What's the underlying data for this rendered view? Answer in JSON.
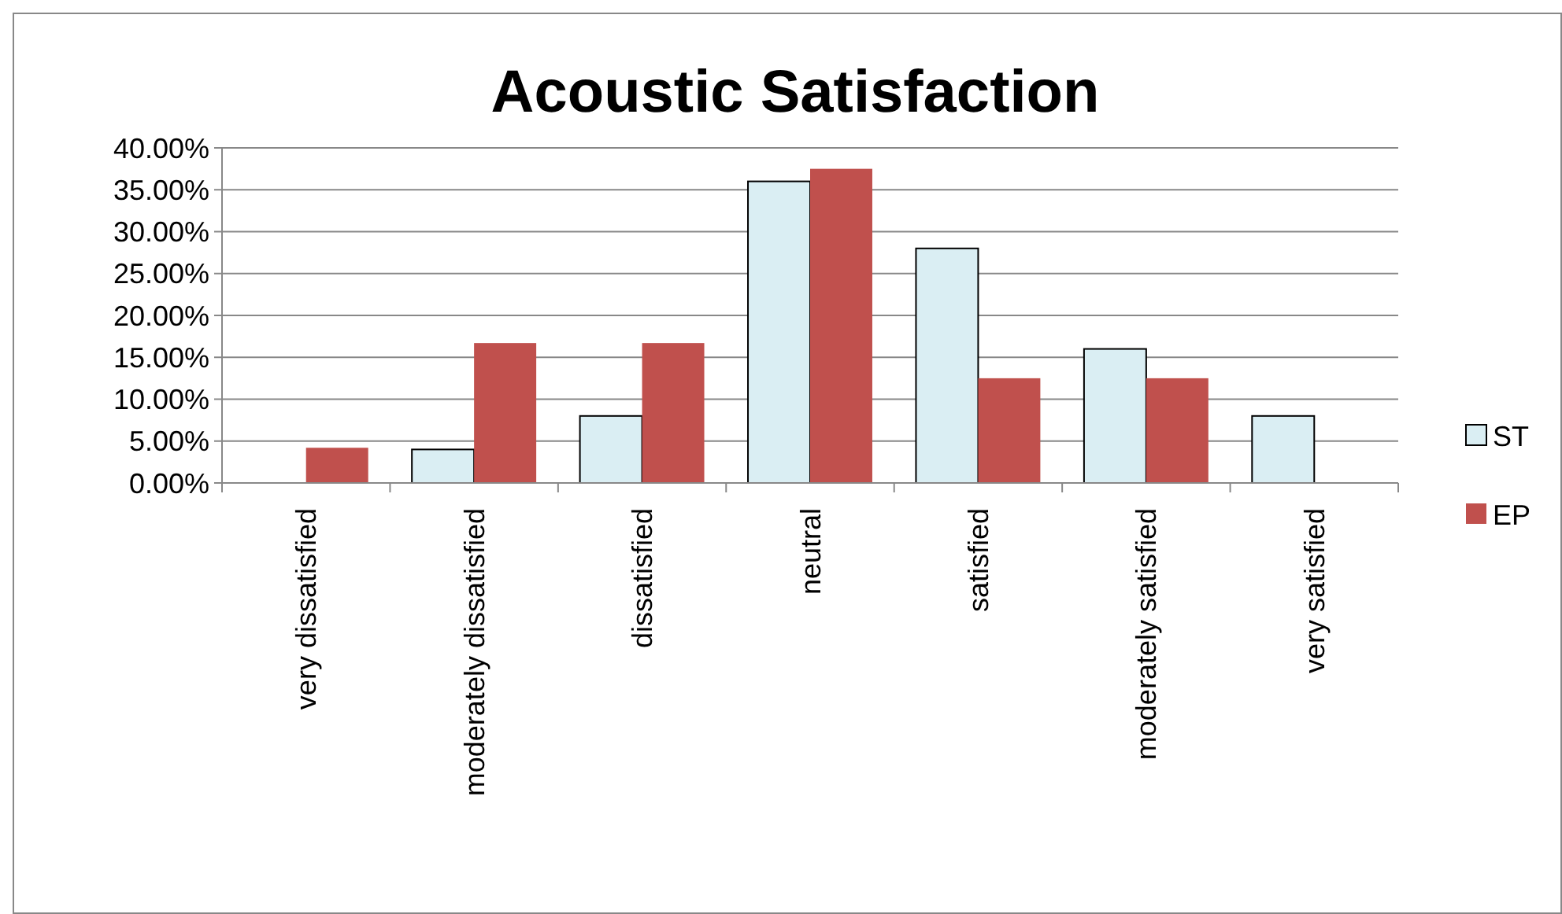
{
  "chart_data": {
    "type": "bar",
    "title": "Acoustic Satisfaction",
    "categories": [
      "very dissatisfied",
      "moderately dissatisfied",
      "dissatisfied",
      "neutral",
      "satisfied",
      "moderately satisfied",
      "very satisfied"
    ],
    "series": [
      {
        "name": "ST",
        "color": "#daeef3",
        "values": [
          0,
          4,
          8,
          36,
          28,
          16,
          8
        ]
      },
      {
        "name": "EP",
        "color": "#c0504d",
        "values": [
          4.2,
          16.7,
          16.7,
          37.5,
          12.5,
          12.5,
          0
        ]
      }
    ],
    "ylim": [
      0,
      40
    ],
    "yticks": [
      {
        "value": 0,
        "label": "0.00%"
      },
      {
        "value": 5,
        "label": "5.00%"
      },
      {
        "value": 10,
        "label": "10.00%"
      },
      {
        "value": 15,
        "label": "15.00%"
      },
      {
        "value": 20,
        "label": "20.00%"
      },
      {
        "value": 25,
        "label": "25.00%"
      },
      {
        "value": 30,
        "label": "30.00%"
      },
      {
        "value": 35,
        "label": "35.00%"
      },
      {
        "value": 40,
        "label": "40.00%"
      }
    ],
    "grid": "y",
    "legend": "right"
  }
}
